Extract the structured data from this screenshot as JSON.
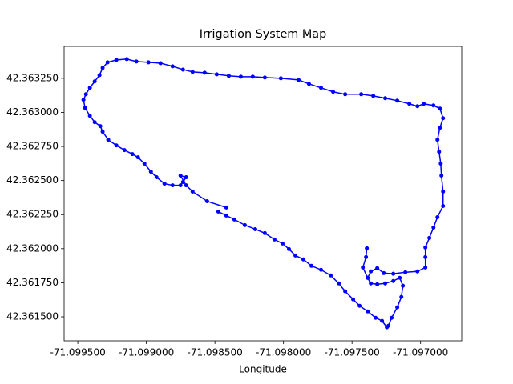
{
  "chart_data": {
    "type": "line",
    "title": "Irrigation System Map",
    "x_label": "Longitude",
    "color": "#0000ff",
    "marker": "o",
    "x": [
      -71.097392,
      -71.097398,
      -71.097421,
      -71.097386,
      null,
      -71.098417,
      -71.098557,
      -71.098663,
      -71.09871,
      -71.098751,
      -71.09871,
      -71.098733,
      -71.098751,
      -71.098809,
      -71.098868,
      -71.098926,
      -71.098967,
      -71.099014,
      -71.099061,
      -71.099102,
      -71.09916,
      -71.099219,
      -71.099278,
      -71.099319,
      -71.099336,
      -71.099377,
      -71.099412,
      -71.099447,
      -71.099459,
      -71.099441,
      -71.099412,
      -71.099377,
      -71.099342,
      -71.099319,
      -71.099283,
      -71.099219,
      -71.099143,
      -71.099073,
      -71.098985,
      -71.098897,
      -71.098809,
      -71.098733,
      -71.098663,
      -71.098575,
      -71.098487,
      -71.098399,
      -71.098311,
      -71.098224,
      -71.098136,
      -71.098019,
      -71.09789,
      -71.097814,
      -71.097726,
      -71.097638,
      -71.09755,
      -71.097433,
      -71.097345,
      -71.097258,
      -71.09717,
      -71.097082,
      -71.097023,
      -71.096977,
      -71.096906,
      -71.096859,
      -71.096836,
      -71.096859,
      -71.096877,
      -71.096865,
      -71.096853,
      -71.096848,
      -71.096836,
      -71.096836,
      -71.096877,
      -71.096906,
      -71.096936,
      -71.096965,
      -71.096965,
      -71.096965,
      -71.097023,
      -71.097111,
      -71.097199,
      -71.097269,
      -71.097316,
      -71.097363,
      -71.097386,
      -71.097363,
      -71.097316,
      -71.097258,
      -71.097199,
      -71.097152,
      -71.097129,
      -71.09714,
      -71.09717,
      -71.097211,
      -71.097234,
      -71.097246,
      -71.097281,
      -71.097328,
      -71.097386,
      -71.097445,
      -71.097492,
      -71.09755,
      -71.097597,
      -71.097656,
      -71.097726,
      -71.097796,
      -71.097855,
      -71.097913,
      -71.09796,
      -71.098007,
      -71.098066,
      -71.098136,
      -71.098206,
      -71.098282,
      -71.098358,
      -71.098417,
      -71.098475
    ],
    "values": [
      42.362003,
      42.361938,
      42.361862,
      42.361786,
      null,
      42.362302,
      42.362348,
      42.362419,
      42.362465,
      42.362536,
      42.362524,
      42.362489,
      42.362465,
      42.362465,
      42.362477,
      42.362524,
      42.362565,
      42.362624,
      42.36267,
      42.362694,
      42.362723,
      42.362758,
      42.362799,
      42.362858,
      42.362899,
      42.362928,
      42.362975,
      42.363033,
      42.363092,
      42.363133,
      42.36318,
      42.363227,
      42.363273,
      42.363326,
      42.363367,
      42.363385,
      42.363391,
      42.363373,
      42.363367,
      42.363361,
      42.363338,
      42.363314,
      42.363297,
      42.363291,
      42.363279,
      42.363268,
      42.363262,
      42.363262,
      42.363256,
      42.36325,
      42.363238,
      42.363209,
      42.36318,
      42.363151,
      42.363133,
      42.363133,
      42.363121,
      42.363104,
      42.363086,
      42.363063,
      42.363045,
      42.363063,
      42.363051,
      42.363028,
      42.362957,
      42.362887,
      42.362799,
      42.362711,
      42.362624,
      42.362536,
      42.362419,
      42.362313,
      42.362231,
      42.362155,
      42.362079,
      42.362009,
      42.361938,
      42.361862,
      42.361833,
      42.361827,
      42.361816,
      42.361821,
      42.361857,
      42.361833,
      42.361786,
      42.361745,
      42.361739,
      42.361745,
      42.361763,
      42.361786,
      42.361728,
      42.361646,
      42.36157,
      42.361493,
      42.361435,
      42.361423,
      42.36147,
      42.361493,
      42.36154,
      42.361581,
      42.361628,
      42.361687,
      42.361745,
      42.361804,
      42.361845,
      42.361874,
      42.361921,
      42.36195,
      42.361997,
      42.362038,
      42.362067,
      42.362114,
      42.362143,
      42.362173,
      42.362214,
      42.362243,
      42.362272
    ],
    "xlim": [
      -71.0996,
      -71.0967
    ],
    "ylim": [
      42.361324,
      42.363484
    ],
    "xticks": [
      {
        "value": -71.0995,
        "label": "-71.099500"
      },
      {
        "value": -71.099,
        "label": "-71.099000"
      },
      {
        "value": -71.0985,
        "label": "-71.098500"
      },
      {
        "value": -71.098,
        "label": "-71.098000"
      },
      {
        "value": -71.0975,
        "label": "-71.097500"
      },
      {
        "value": -71.097,
        "label": "-71.097000"
      }
    ],
    "yticks": [
      {
        "value": 42.3615,
        "label": "42.361500"
      },
      {
        "value": 42.36175,
        "label": "42.361750"
      },
      {
        "value": 42.362,
        "label": "42.362000"
      },
      {
        "value": 42.36225,
        "label": "42.362250"
      },
      {
        "value": 42.3625,
        "label": "42.362500"
      },
      {
        "value": 42.36275,
        "label": "42.362750"
      },
      {
        "value": 42.363,
        "label": "42.363000"
      },
      {
        "value": 42.36325,
        "label": "42.363250"
      }
    ]
  }
}
